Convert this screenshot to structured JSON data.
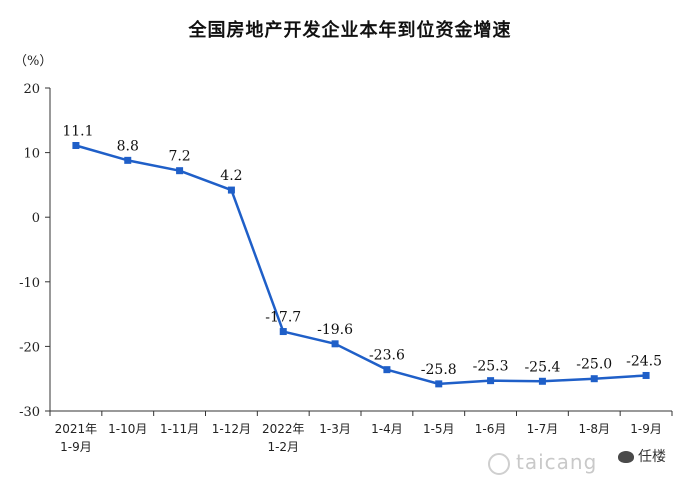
{
  "title": "全国房地产开发企业本年到位资金增速",
  "unit_label": "（%）",
  "watermark": "taicang",
  "badge": "任楼",
  "colors": {
    "line": "#1f5fc8",
    "axis": "#333333",
    "text": "#222222"
  },
  "chart_data": {
    "type": "line",
    "title": "全国房地产开发企业本年到位资金增速",
    "ylabel": "（%）",
    "xlabel": "",
    "ylim": [
      -30,
      20
    ],
    "yticks": [
      -30,
      -20,
      -10,
      0,
      10,
      20
    ],
    "grid": false,
    "categories": [
      [
        "2021年",
        "1-9月"
      ],
      [
        "1-10月"
      ],
      [
        "1-11月"
      ],
      [
        "1-12月"
      ],
      [
        "2022年",
        "1-2月"
      ],
      [
        "1-3月"
      ],
      [
        "1-4月"
      ],
      [
        "1-5月"
      ],
      [
        "1-6月"
      ],
      [
        "1-7月"
      ],
      [
        "1-8月"
      ],
      [
        "1-9月"
      ]
    ],
    "values": [
      11.1,
      8.8,
      7.2,
      4.2,
      -17.7,
      -19.6,
      -23.6,
      -25.8,
      -25.3,
      -25.4,
      -25.0,
      -24.5
    ],
    "data_labels": [
      "11.1",
      "8.8",
      "7.2",
      "4.2",
      "-17.7",
      "-19.6",
      "-23.6",
      "-25.8",
      "-25.3",
      "-25.4",
      "-25.0",
      "-24.5"
    ]
  }
}
